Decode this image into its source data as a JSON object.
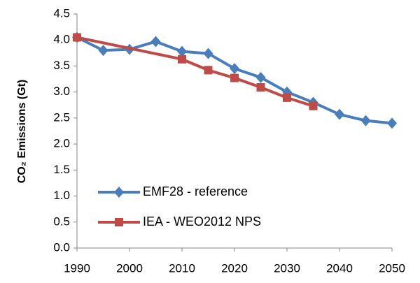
{
  "chart_data": {
    "type": "line",
    "y_label": "CO₂ Emissions (Gt)",
    "xlim": [
      1990,
      2050
    ],
    "xticks": [
      1990,
      2000,
      2010,
      2020,
      2030,
      2040,
      2050
    ],
    "ylim": [
      0,
      4.5
    ],
    "yticks": [
      {
        "value": 0,
        "label": "0.0"
      },
      0.5,
      {
        "value": 1,
        "label": "1.0"
      },
      1.5,
      {
        "value": 2,
        "label": "2.0"
      },
      2.5,
      {
        "value": 3,
        "label": "3.0"
      },
      3.5,
      {
        "value": 4,
        "label": "4.0"
      },
      4.5
    ],
    "grid": false,
    "legend": "lower left",
    "series": [
      {
        "name": "EMF28 - reference",
        "color": "#4a7ebb",
        "marker": "diamond",
        "x": [
          1990,
          1995,
          2000,
          2005,
          2010,
          2015,
          2020,
          2025,
          2030,
          2035,
          2040,
          2045,
          2050
        ],
        "values": [
          4.05,
          3.8,
          3.82,
          3.97,
          3.78,
          3.74,
          3.45,
          3.28,
          3.0,
          2.8,
          2.57,
          2.45,
          2.4
        ]
      },
      {
        "name": "IEA - WEO2012 NPS",
        "color": "#be4b48",
        "marker": "square",
        "x": [
          1990,
          2010,
          2015,
          2020,
          2025,
          2030,
          2035
        ],
        "values": [
          4.05,
          3.63,
          3.42,
          3.27,
          3.09,
          2.89,
          2.73
        ]
      }
    ]
  }
}
